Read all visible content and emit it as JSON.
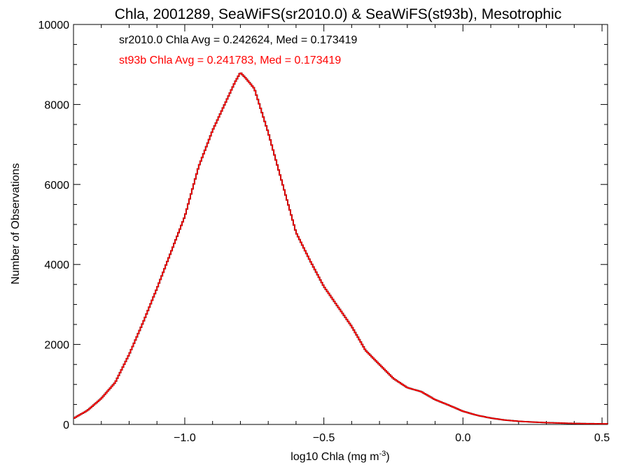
{
  "chart_data": {
    "type": "line",
    "style": "step-histogram",
    "title": "Chla, 2001289, SeaWiFS(sr2010.0) & SeaWiFS(st93b), Mesotrophic",
    "xlabel": "log10 Chla (mg m",
    "xlabel_sup": "-3",
    "xlabel_end": ")",
    "ylabel": "Number of Observations",
    "xlim": [
      -1.4,
      0.52
    ],
    "ylim": [
      0,
      10000
    ],
    "x_ticks": [
      -1.0,
      -0.5,
      0.0,
      0.5
    ],
    "x_tick_labels": [
      "−1.0",
      "−0.5",
      "0.0",
      "0.5"
    ],
    "y_ticks": [
      0,
      2000,
      4000,
      6000,
      8000,
      10000
    ],
    "y_tick_labels": [
      "0",
      "2000",
      "4000",
      "6000",
      "8000",
      "10000"
    ],
    "grid": false,
    "annotations": [
      {
        "text": "sr2010.0 Chla Avg = 0.242624, Med = 0.173419",
        "color": "#000000"
      },
      {
        "text": "st93b Chla Avg = 0.241783, Med = 0.173419",
        "color": "#ff0000"
      }
    ],
    "x": [
      -1.4,
      -1.35,
      -1.3,
      -1.25,
      -1.2,
      -1.15,
      -1.1,
      -1.05,
      -1.0,
      -0.95,
      -0.9,
      -0.85,
      -0.82,
      -0.8,
      -0.78,
      -0.75,
      -0.7,
      -0.65,
      -0.6,
      -0.55,
      -0.5,
      -0.45,
      -0.4,
      -0.35,
      -0.3,
      -0.25,
      -0.2,
      -0.15,
      -0.1,
      -0.05,
      0.0,
      0.05,
      0.1,
      0.15,
      0.2,
      0.25,
      0.3,
      0.35,
      0.4,
      0.45,
      0.52
    ],
    "series": [
      {
        "name": "sr2010.0",
        "color": "#000000",
        "values": [
          150,
          350,
          650,
          1050,
          1750,
          2550,
          3400,
          4300,
          5200,
          6450,
          7350,
          8100,
          8550,
          8800,
          8650,
          8400,
          7300,
          6050,
          4800,
          4100,
          3450,
          2950,
          2450,
          1850,
          1500,
          1150,
          920,
          820,
          620,
          480,
          330,
          230,
          160,
          110,
          80,
          60,
          45,
          35,
          25,
          20,
          15
        ]
      },
      {
        "name": "st93b",
        "color": "#ff0000",
        "values": [
          150,
          350,
          650,
          1050,
          1750,
          2550,
          3400,
          4300,
          5200,
          6450,
          7350,
          8100,
          8550,
          8800,
          8650,
          8400,
          7300,
          6050,
          4800,
          4100,
          3450,
          2950,
          2450,
          1850,
          1500,
          1150,
          920,
          820,
          620,
          480,
          330,
          230,
          160,
          110,
          80,
          60,
          45,
          35,
          25,
          20,
          15
        ]
      }
    ]
  }
}
